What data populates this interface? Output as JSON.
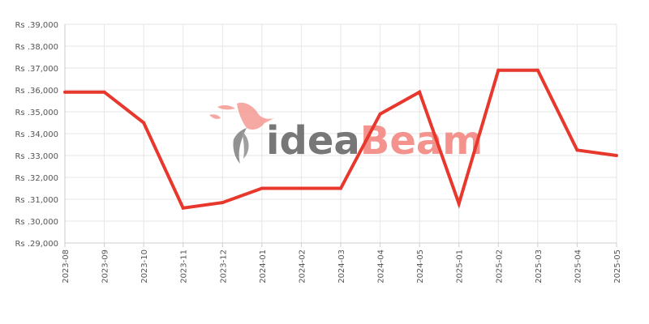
{
  "chart_data": {
    "type": "line",
    "title": "",
    "xlabel": "",
    "ylabel": "",
    "categories": [
      "2023-08",
      "2023-09",
      "2023-10",
      "2023-11",
      "2023-12",
      "2024-01",
      "2024-02",
      "2024-03",
      "2024-04",
      "2024-05",
      "2025-01",
      "2025-02",
      "2025-03",
      "2025-04",
      "2025-05"
    ],
    "series": [
      {
        "values": [
          35900,
          35900,
          34500,
          30600,
          30850,
          31500,
          31500,
          31500,
          34900,
          35900,
          30800,
          36900,
          36900,
          33250,
          33000
        ]
      }
    ],
    "ylim": [
      29000,
      39000
    ],
    "y_ticks": [
      29000,
      30000,
      31000,
      32000,
      33000,
      34000,
      35000,
      36000,
      37000,
      38000,
      39000
    ],
    "y_tick_labels": [
      "Rs .29,000",
      "Rs .30,000",
      "Rs .31,000",
      "Rs .32,000",
      "Rs .33,000",
      "Rs .34,000",
      "Rs .35,000",
      "Rs .36,000",
      "Rs .37,000",
      "Rs .38,000",
      "Rs .39,000"
    ],
    "grid": true,
    "legend": "none",
    "line_color": "#e8372c",
    "grid_color": "#e6e6e6",
    "axis_color": "#cccccc"
  },
  "watermark": {
    "part1": "idea",
    "part2": "Beam",
    "color1": "#777777",
    "color2": "#f4938d",
    "icon": "hummingbird-icon"
  }
}
